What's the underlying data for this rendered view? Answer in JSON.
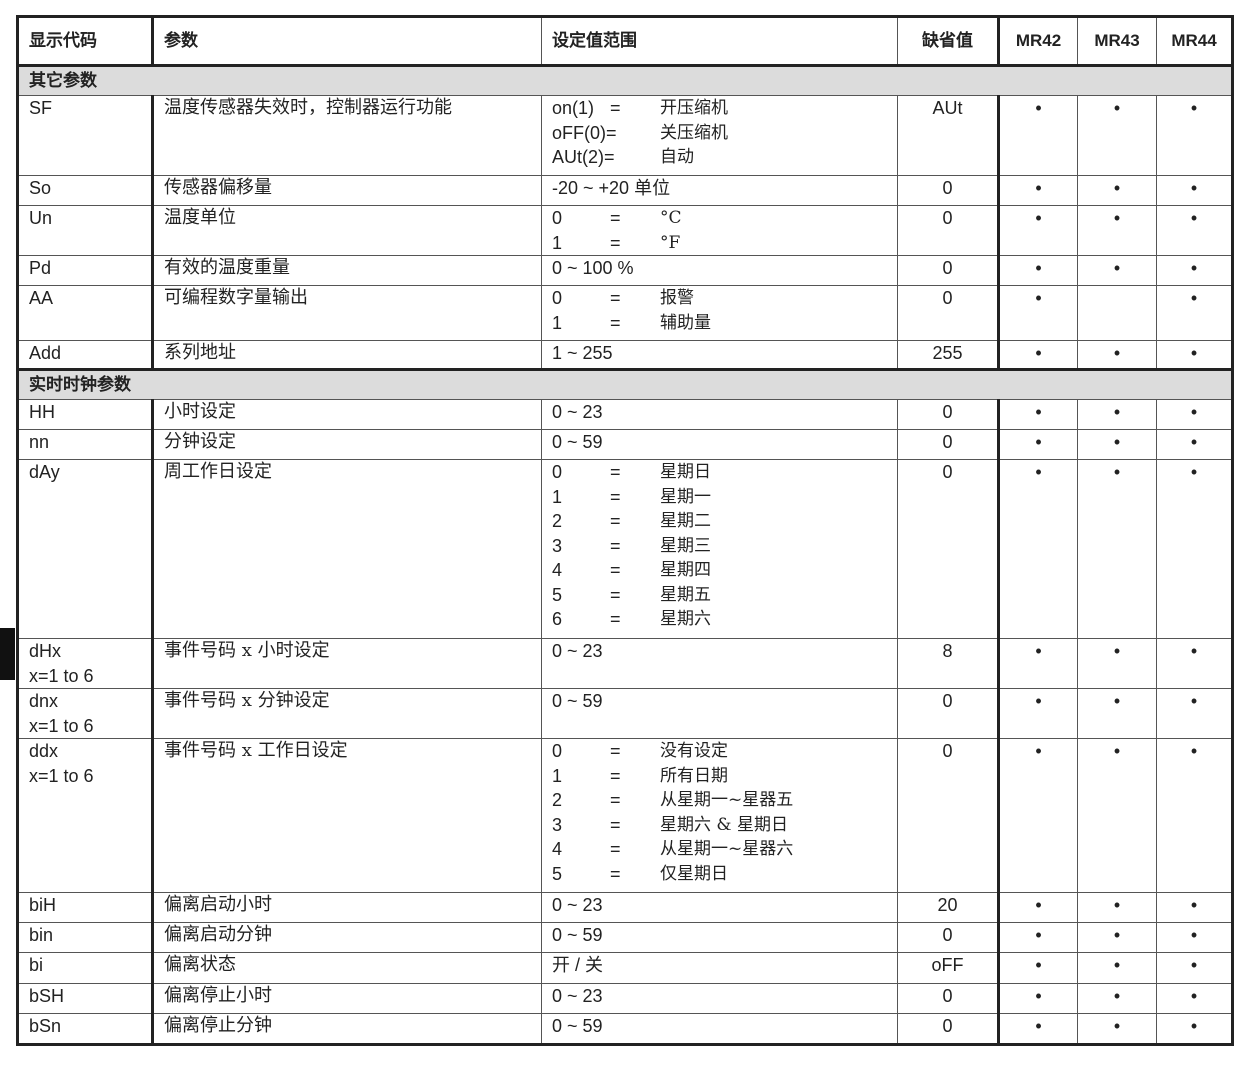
{
  "header": {
    "code": "显示代码",
    "param": "参数",
    "range": "设定值范围",
    "default": "缺省值",
    "models": [
      "MR42",
      "MR43",
      "MR44"
    ]
  },
  "sections": [
    {
      "title": "其它参数",
      "rows": [
        {
          "code": [
            "SF"
          ],
          "param": "温度传感器失效时，控制器运行功能",
          "range": [
            [
              "on(1)",
              "=",
              "开压缩机"
            ],
            [
              "oFF(0)=",
              "",
              "关压缩机"
            ],
            [
              "AUt(2)=",
              "",
              "自动"
            ]
          ],
          "default": "AUt",
          "dots": [
            true,
            true,
            true
          ]
        },
        {
          "code": [
            "So"
          ],
          "param": "传感器偏移量",
          "range": "-20 ~ +20 单位",
          "default": "0",
          "dots": [
            true,
            true,
            true
          ]
        },
        {
          "code": [
            "Un"
          ],
          "param": "温度单位",
          "range": [
            [
              "0",
              "=",
              "°C"
            ],
            [
              "1",
              "=",
              "°F"
            ]
          ],
          "default": "0",
          "dots": [
            true,
            true,
            true
          ]
        },
        {
          "code": [
            "Pd"
          ],
          "param": "有效的温度重量",
          "range": "0 ~ 100 %",
          "default": "0",
          "dots": [
            true,
            true,
            true
          ]
        },
        {
          "code": [
            "AA"
          ],
          "param": "可编程数字量输出",
          "range": [
            [
              "0",
              "=",
              "报警"
            ],
            [
              "1",
              "=",
              "辅助量"
            ]
          ],
          "default": "0",
          "dots": [
            true,
            false,
            true
          ]
        },
        {
          "code": [
            "Add"
          ],
          "param": "系列地址",
          "range": "1 ~ 255",
          "default": "255",
          "dots": [
            true,
            true,
            true
          ]
        }
      ]
    },
    {
      "title": "实时时钟参数",
      "rows": [
        {
          "code": [
            "HH"
          ],
          "param": "小时设定",
          "range": "0 ~ 23",
          "default": "0",
          "dots": [
            true,
            true,
            true
          ]
        },
        {
          "code": [
            "nn"
          ],
          "param": "分钟设定",
          "range": "0 ~ 59",
          "default": "0",
          "dots": [
            true,
            true,
            true
          ]
        },
        {
          "code": [
            "dAy"
          ],
          "param": "周工作日设定",
          "range": [
            [
              "0",
              "=",
              "星期日"
            ],
            [
              "1",
              "=",
              "星期一"
            ],
            [
              "2",
              "=",
              "星期二"
            ],
            [
              "3",
              "=",
              "星期三"
            ],
            [
              "4",
              "=",
              "星期四"
            ],
            [
              "5",
              "=",
              "星期五"
            ],
            [
              "6",
              "=",
              "星期六"
            ]
          ],
          "default": "0",
          "dots": [
            true,
            true,
            true
          ]
        },
        {
          "code": [
            "dHx",
            "x=1 to 6"
          ],
          "param": "事件号码 x 小时设定",
          "range": "0 ~ 23",
          "default": "8",
          "dots": [
            true,
            true,
            true
          ]
        },
        {
          "code": [
            "dnx",
            "x=1 to 6"
          ],
          "param": "事件号码 x 分钟设定",
          "range": "0 ~ 59",
          "default": "0",
          "dots": [
            true,
            true,
            true
          ]
        },
        {
          "code": [
            "ddx",
            "x=1 to 6"
          ],
          "param": "事件号码 x 工作日设定",
          "range": [
            [
              "0",
              "=",
              "没有设定"
            ],
            [
              "1",
              "=",
              "所有日期"
            ],
            [
              "2",
              "=",
              "从星期一~星器五"
            ],
            [
              "3",
              "=",
              "星期六 & 星期日"
            ],
            [
              "4",
              "=",
              "从星期一~星器六"
            ],
            [
              "5",
              "=",
              "仅星期日"
            ]
          ],
          "default": "0",
          "dots": [
            true,
            true,
            true
          ]
        },
        {
          "code": [
            "biH"
          ],
          "param": "偏离启动小时",
          "range": "0 ~ 23",
          "default": "20",
          "dots": [
            true,
            true,
            true
          ]
        },
        {
          "code": [
            "bin"
          ],
          "param": "偏离启动分钟",
          "range": "0 ~ 59",
          "default": "0",
          "dots": [
            true,
            true,
            true
          ]
        },
        {
          "code": [
            "bi"
          ],
          "param": "偏离状态",
          "range": "开 / 关",
          "default": "oFF",
          "dots": [
            true,
            true,
            true
          ]
        },
        {
          "code": [
            "bSH"
          ],
          "param": "偏离停止小时",
          "range": "0 ~ 23",
          "default": "0",
          "dots": [
            true,
            true,
            true
          ]
        },
        {
          "code": [
            "bSn"
          ],
          "param": "偏离停止分钟",
          "range": "0 ~ 59",
          "default": "0",
          "dots": [
            true,
            true,
            true
          ]
        }
      ]
    }
  ],
  "dot_symbol": "•"
}
